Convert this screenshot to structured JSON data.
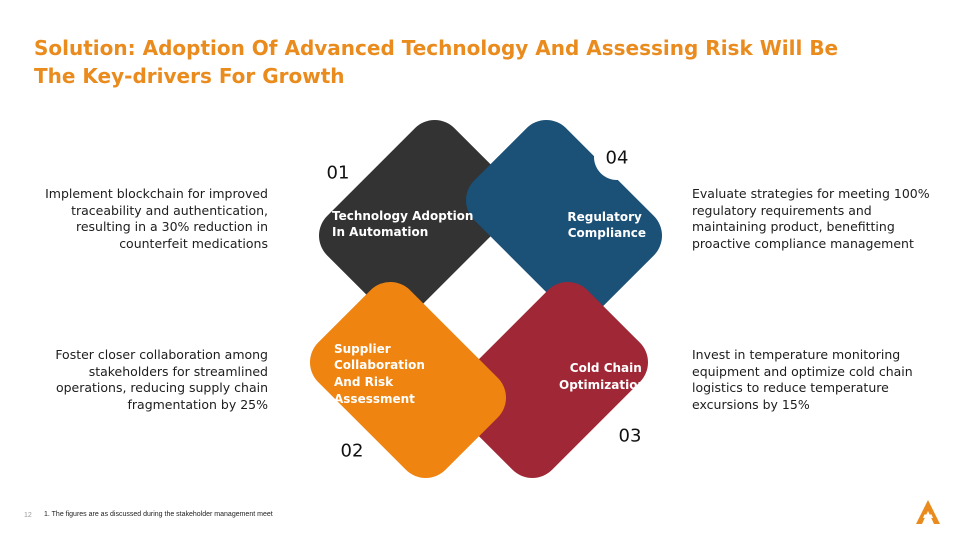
{
  "slide": {
    "title": "Solution: Adoption Of Advanced Technology And Assessing Risk Will Be The Key-drivers For Growth",
    "page_number": "12",
    "footnote": "1. The figures are as discussed during the stakeholder management meet"
  },
  "colors": {
    "title": "#EA8B1E",
    "petal_01": "#333333",
    "petal_02": "#EF8410",
    "petal_03": "#A02836",
    "petal_04": "#1B5077"
  },
  "petals": [
    {
      "number": "01",
      "label_lines": [
        "Technology Adoption",
        "In Automation"
      ],
      "description": "Implement blockchain for improved traceability and authentication, resulting in a 30% reduction in counterfeit medications"
    },
    {
      "number": "02",
      "label_lines": [
        "Supplier",
        "Collaboration",
        "And Risk",
        "Assessment"
      ],
      "description": "Foster closer collaboration among stakeholders for streamlined operations, reducing supply chain fragmentation by 25%"
    },
    {
      "number": "03",
      "label_lines": [
        "Cold Chain",
        "Optimization"
      ],
      "description": "Invest in temperature monitoring equipment and optimize cold chain logistics to reduce temperature excursions by 15%"
    },
    {
      "number": "04",
      "label_lines": [
        "Regulatory",
        "Compliance"
      ],
      "description": "Evaluate strategies for meeting 100% regulatory requirements and maintaining product, benefitting proactive compliance management"
    }
  ],
  "icons": {
    "logo": "company-logo-a"
  }
}
